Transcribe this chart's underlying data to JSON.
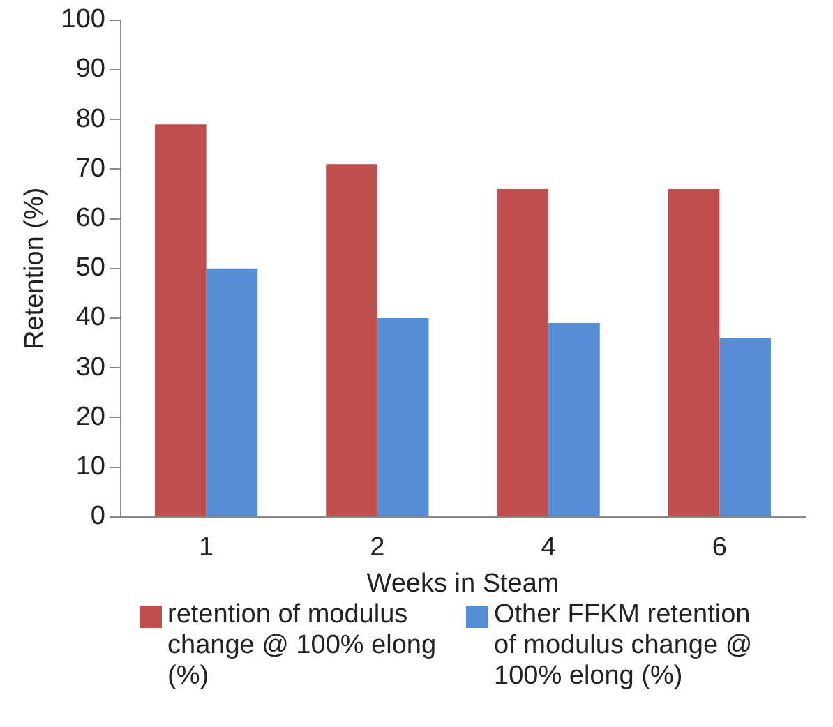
{
  "chart_data": {
    "type": "bar",
    "xlabel": "Weeks in Steam",
    "ylabel": "Retention (%)",
    "categories": [
      "1",
      "2",
      "4",
      "6"
    ],
    "series": [
      {
        "name": "retention of modulus change @ 100% elong (%)",
        "color": "#c0504d",
        "values": [
          79,
          71,
          66,
          66
        ]
      },
      {
        "name": "Other FFKM retention of modulus change @ 100% elong (%)",
        "color": "#558ed5",
        "values": [
          50,
          40,
          39,
          36
        ]
      }
    ],
    "ylim": [
      0,
      100
    ],
    "yticks": [
      0,
      10,
      20,
      30,
      40,
      50,
      60,
      70,
      80,
      90,
      100
    ],
    "grid": false,
    "legend": "bottom"
  }
}
